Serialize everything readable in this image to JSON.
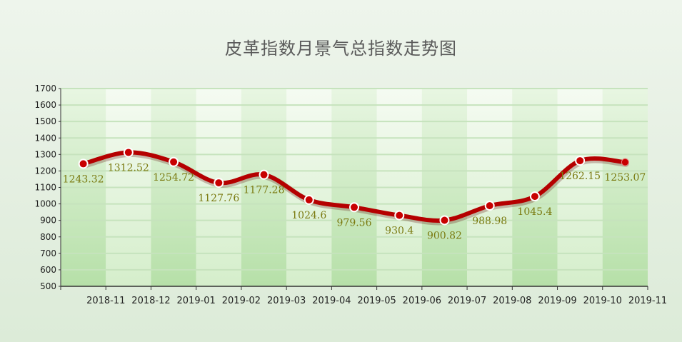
{
  "chart_data": {
    "type": "line",
    "title": "皮革指数月景气总指数走势图",
    "xlabel": "",
    "ylabel": "",
    "categories": [
      "2018-11",
      "2018-12",
      "2019-01",
      "2019-02",
      "2019-03",
      "2019-04",
      "2019-05",
      "2019-06",
      "2019-07",
      "2019-08",
      "2019-09",
      "2019-10",
      "2019-11"
    ],
    "series": [
      {
        "values": [
          1243.32,
          1312.52,
          1254.72,
          1127.76,
          1177.28,
          1024.6,
          979.56,
          930.4,
          900.82,
          988.98,
          1045.4,
          1262.15,
          1253.07
        ]
      }
    ],
    "data_labels": [
      "1243.32",
      "1312.52",
      "1254.72",
      "1127.76",
      "1177.28",
      "1024.6",
      "979.56",
      "930.4",
      "900.82",
      "988.98",
      "1045.4",
      "1262.15",
      "1253.07"
    ],
    "yticks": [
      500,
      600,
      700,
      800,
      900,
      1000,
      1100,
      1200,
      1300,
      1400,
      1500,
      1600,
      1700
    ],
    "ylim": [
      500,
      1700
    ],
    "grid": true,
    "legend": "none",
    "colors": {
      "line": "#b50000",
      "marker_fill": "#c80000",
      "marker_stroke": "#ffffff",
      "data_label": "#7a7a10",
      "gridline": "#c6e3bd",
      "band_dark_top": "#e8f6e2",
      "band_dark_bottom": "#b6e0a8",
      "band_light_top": "#f5fbf2",
      "band_light_bottom": "#d5eecb",
      "axis": "#333333"
    }
  }
}
